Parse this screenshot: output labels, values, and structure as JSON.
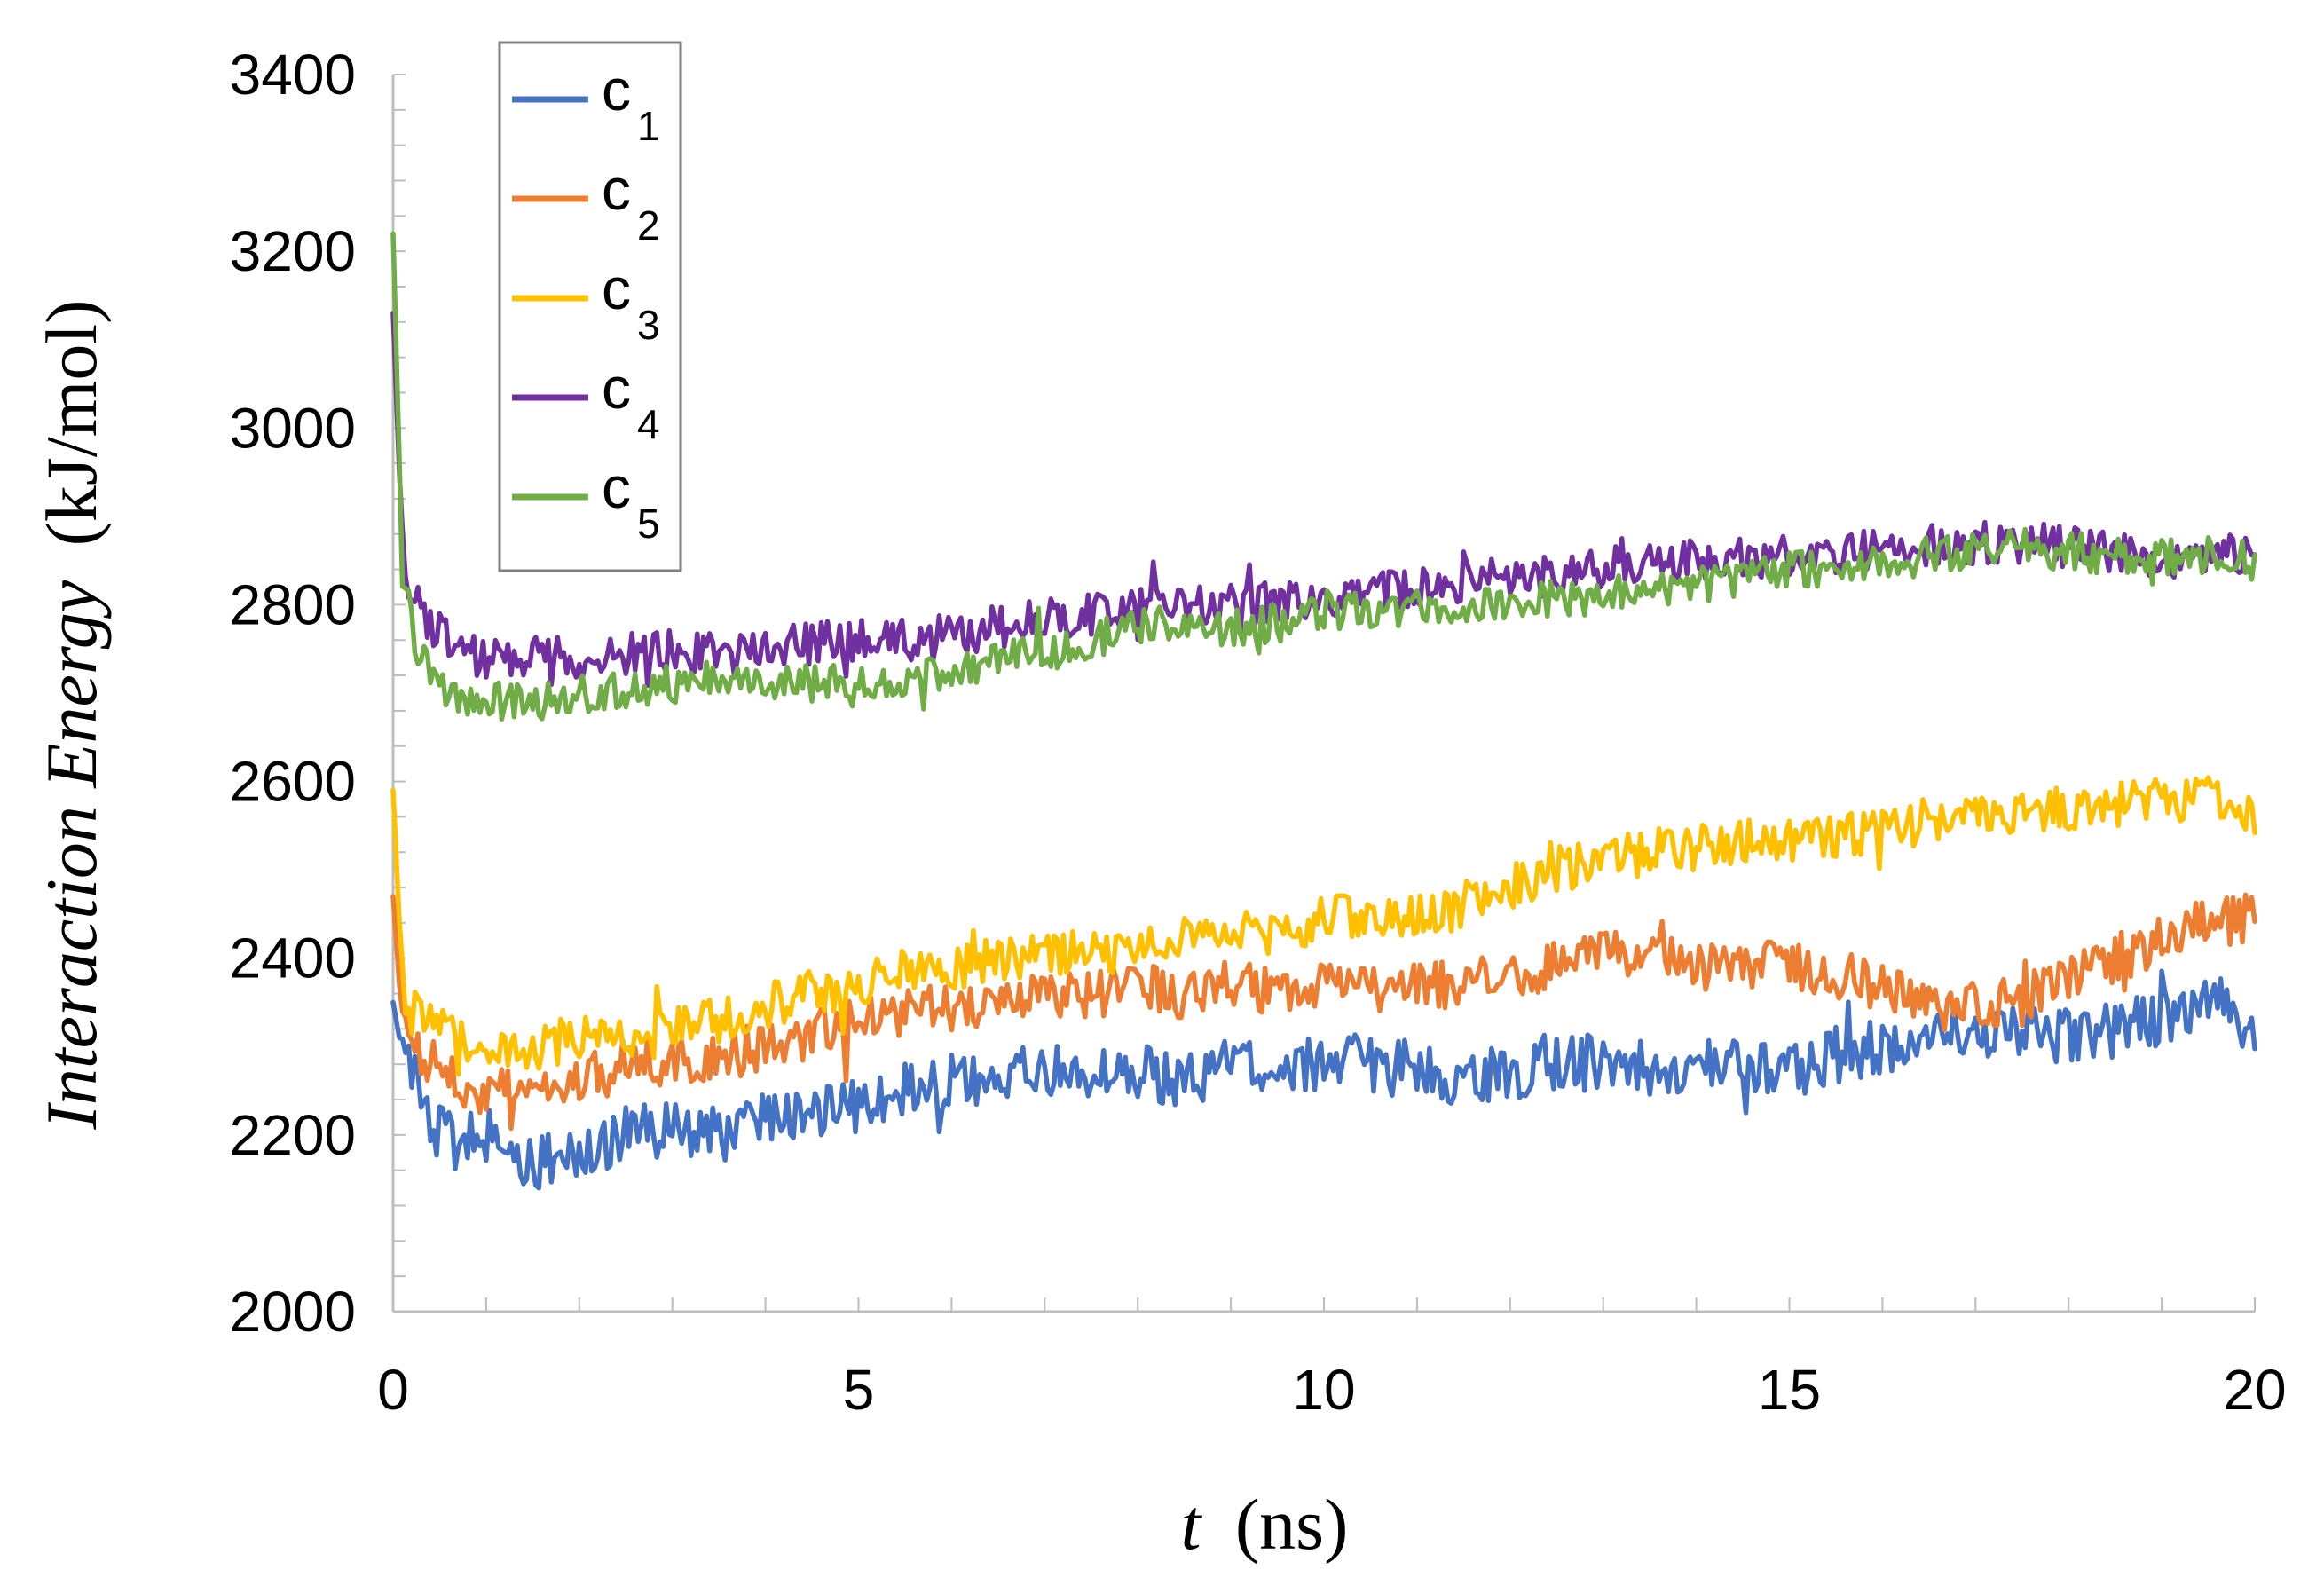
{
  "chart_data": {
    "type": "line",
    "title": "",
    "xlabel_italic": "t",
    "xlabel_unit": "(ns)",
    "ylabel_italic": "Interaction Energy",
    "ylabel_unit": "(kJ/mol)",
    "xlim": [
      0,
      20
    ],
    "ylim": [
      2000,
      3400
    ],
    "x_ticks": [
      "0",
      "5",
      "10",
      "15",
      "20"
    ],
    "y_ticks": [
      "2000",
      "2200",
      "2400",
      "2600",
      "2800",
      "3000",
      "3200",
      "3400"
    ],
    "legend_position": "top-left",
    "series": [
      {
        "name": "c",
        "subscript": "1",
        "color": "#4472C4",
        "x": [
          0,
          0.1,
          0.2,
          0.3,
          0.5,
          0.75,
          1,
          1.5,
          2,
          2.5,
          3,
          3.5,
          4,
          4.5,
          5,
          5.5,
          6,
          6.5,
          7,
          7.5,
          8,
          8.5,
          9,
          9.5,
          10,
          10.5,
          11,
          11.5,
          12,
          12.5,
          13,
          13.5,
          14,
          14.5,
          15,
          15.5,
          16,
          16.5,
          17,
          17.5,
          18,
          18.5,
          19,
          19.5,
          20
        ],
        "y": [
          2350,
          2290,
          2270,
          2240,
          2200,
          2190,
          2200,
          2170,
          2180,
          2200,
          2205,
          2200,
          2215,
          2225,
          2240,
          2250,
          2260,
          2265,
          2275,
          2265,
          2270,
          2260,
          2280,
          2270,
          2285,
          2280,
          2275,
          2265,
          2270,
          2285,
          2280,
          2275,
          2280,
          2285,
          2270,
          2290,
          2300,
          2320,
          2305,
          2320,
          2310,
          2320,
          2330,
          2360,
          2320
        ]
      },
      {
        "name": "c",
        "subscript": "2",
        "color": "#ED7D31",
        "x": [
          0,
          0.1,
          0.2,
          0.3,
          0.5,
          0.75,
          1,
          1.5,
          2,
          2.5,
          3,
          3.5,
          4,
          4.5,
          5,
          5.5,
          6,
          6.5,
          7,
          7.5,
          8,
          8.5,
          9,
          9.5,
          10,
          10.5,
          11,
          11.5,
          12,
          12.5,
          13,
          13.5,
          14,
          14.5,
          15,
          15.5,
          16,
          16.5,
          17,
          17.5,
          18,
          18.5,
          19,
          19.5,
          20
        ],
        "y": [
          2470,
          2320,
          2300,
          2290,
          2270,
          2260,
          2250,
          2240,
          2260,
          2280,
          2285,
          2290,
          2300,
          2315,
          2330,
          2340,
          2345,
          2350,
          2355,
          2360,
          2365,
          2360,
          2370,
          2365,
          2365,
          2360,
          2365,
          2370,
          2380,
          2395,
          2405,
          2400,
          2390,
          2390,
          2395,
          2380,
          2370,
          2345,
          2350,
          2350,
          2380,
          2400,
          2420,
          2440,
          2445
        ]
      },
      {
        "name": "c",
        "subscript": "3",
        "color": "#FFC000",
        "x": [
          0,
          0.1,
          0.2,
          0.3,
          0.5,
          0.75,
          1,
          1.5,
          2,
          2.5,
          3,
          3.5,
          4,
          4.5,
          5,
          5.5,
          6,
          6.5,
          7,
          7.5,
          8,
          8.5,
          9,
          9.5,
          10,
          10.5,
          11,
          11.5,
          12,
          12.5,
          13,
          13.5,
          14,
          14.5,
          15,
          15.5,
          16,
          16.5,
          17,
          17.5,
          18,
          18.5,
          19,
          19.5,
          20
        ],
        "y": [
          2590,
          2370,
          2340,
          2330,
          2320,
          2310,
          2305,
          2300,
          2310,
          2305,
          2320,
          2330,
          2345,
          2360,
          2370,
          2385,
          2390,
          2400,
          2405,
          2405,
          2410,
          2420,
          2425,
          2430,
          2445,
          2450,
          2445,
          2460,
          2480,
          2500,
          2510,
          2520,
          2525,
          2530,
          2535,
          2540,
          2545,
          2555,
          2565,
          2560,
          2570,
          2575,
          2580,
          2580,
          2555
        ]
      },
      {
        "name": "c",
        "subscript": "4",
        "color": "#7030A0",
        "x": [
          0,
          0.1,
          0.2,
          0.3,
          0.5,
          0.75,
          1,
          1.5,
          2,
          2.5,
          3,
          3.5,
          4,
          4.5,
          5,
          5.5,
          6,
          6.5,
          7,
          7.5,
          8,
          8.5,
          9,
          9.5,
          10,
          10.5,
          11,
          11.5,
          12,
          12.5,
          13,
          13.5,
          14,
          14.5,
          15,
          15.5,
          16,
          16.5,
          17,
          17.5,
          18,
          18.5,
          19,
          19.5,
          20
        ],
        "y": [
          3130,
          2860,
          2810,
          2790,
          2770,
          2745,
          2740,
          2740,
          2740,
          2745,
          2745,
          2750,
          2750,
          2755,
          2760,
          2760,
          2765,
          2775,
          2785,
          2790,
          2795,
          2800,
          2800,
          2805,
          2810,
          2815,
          2820,
          2825,
          2830,
          2835,
          2840,
          2845,
          2850,
          2855,
          2855,
          2860,
          2865,
          2870,
          2870,
          2870,
          2865,
          2860,
          2855,
          2855,
          2855
        ]
      },
      {
        "name": "c",
        "subscript": "5",
        "color": "#70AD47",
        "x": [
          0,
          0.1,
          0.2,
          0.3,
          0.5,
          0.75,
          1,
          1.5,
          2,
          2.5,
          3,
          3.5,
          4,
          4.5,
          5,
          5.5,
          6,
          6.5,
          7,
          7.5,
          8,
          8.5,
          9,
          9.5,
          10,
          10.5,
          11,
          11.5,
          12,
          12.5,
          13,
          13.5,
          14,
          14.5,
          15,
          15.5,
          16,
          16.5,
          17,
          17.5,
          18,
          18.5,
          19,
          19.5,
          20
        ],
        "y": [
          3220,
          2840,
          2780,
          2740,
          2705,
          2695,
          2690,
          2690,
          2700,
          2705,
          2710,
          2715,
          2715,
          2710,
          2715,
          2715,
          2725,
          2735,
          2745,
          2760,
          2775,
          2780,
          2775,
          2780,
          2790,
          2795,
          2795,
          2800,
          2805,
          2805,
          2810,
          2815,
          2820,
          2830,
          2840,
          2840,
          2845,
          2855,
          2860,
          2865,
          2860,
          2855,
          2855,
          2855,
          2850
        ]
      }
    ]
  }
}
